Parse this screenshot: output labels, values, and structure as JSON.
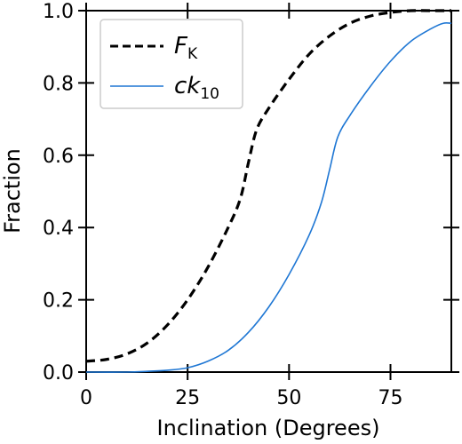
{
  "chart_data": {
    "type": "line",
    "title": "",
    "xlabel": "Inclination (Degrees)",
    "ylabel": "Fraction",
    "xlim": [
      0,
      90
    ],
    "ylim": [
      0,
      1.0
    ],
    "xticks": [
      0,
      25,
      50,
      75
    ],
    "xtick_labels": [
      "0",
      "25",
      "50",
      "75"
    ],
    "yticks": [
      0.0,
      0.2,
      0.4,
      0.6,
      0.8,
      1.0
    ],
    "ytick_labels": [
      "0.0",
      "0.2",
      "0.4",
      "0.6",
      "0.8",
      "1.0"
    ],
    "grid": false,
    "legend_position": "top-left",
    "series": [
      {
        "name": "F_K",
        "legend_main": "F",
        "legend_sub": "K",
        "color": "#000000",
        "style": "dashed",
        "x": [
          0,
          5,
          10,
          15,
          20,
          25,
          30,
          35,
          38,
          40,
          42,
          45,
          50,
          55,
          60,
          65,
          70,
          75,
          80,
          85,
          90
        ],
        "y": [
          0.03,
          0.035,
          0.05,
          0.08,
          0.13,
          0.2,
          0.29,
          0.4,
          0.48,
          0.58,
          0.67,
          0.73,
          0.81,
          0.88,
          0.93,
          0.965,
          0.985,
          0.995,
          1.0,
          1.0,
          1.0
        ]
      },
      {
        "name": "ck_10",
        "legend_main": "ck",
        "legend_sub": "10",
        "color": "#1f77d4",
        "style": "solid",
        "x": [
          0,
          10,
          15,
          20,
          25,
          30,
          35,
          40,
          45,
          50,
          55,
          58,
          60,
          62,
          65,
          70,
          75,
          80,
          85,
          88,
          90
        ],
        "y": [
          0.0,
          0.0,
          0.002,
          0.005,
          0.012,
          0.03,
          0.06,
          0.11,
          0.18,
          0.27,
          0.38,
          0.47,
          0.56,
          0.65,
          0.71,
          0.79,
          0.86,
          0.915,
          0.95,
          0.965,
          0.965
        ]
      }
    ]
  }
}
